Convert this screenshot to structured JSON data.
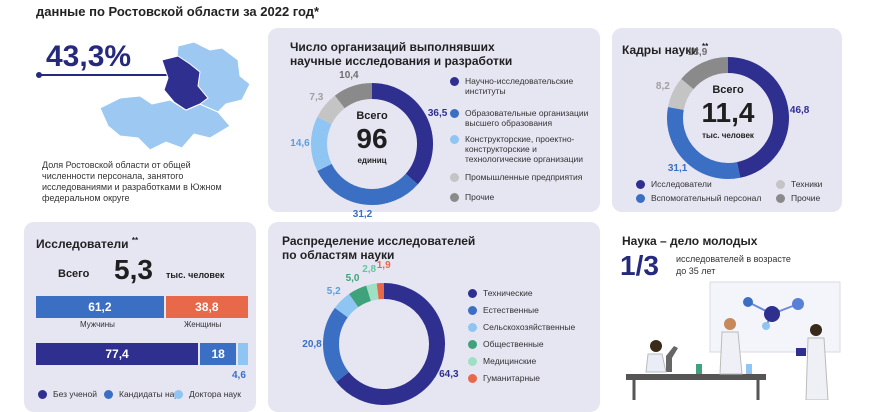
{
  "header": {
    "title": "данные по Ростовской области за 2022 год*"
  },
  "region": {
    "percent": "43,3%",
    "caption": "Доля Ростовской области от общей численности персонала, занятого исследованиями и разработками в Южном федеральном округе"
  },
  "orgs": {
    "title_line1": "Число организаций выполнявших",
    "title_line2": "научные исследования и разработки",
    "center_top": "Всего",
    "center_value": "96",
    "center_unit": "единиц"
  },
  "staff": {
    "title": "Кадры науки",
    "sup": "**",
    "center_top": "Всего",
    "center_value": "11,4",
    "center_unit": "тыс. человек"
  },
  "researchers": {
    "title": "Исследователи",
    "sup": "**",
    "total_label": "Всего",
    "total_value": "5,3",
    "total_unit": "тыс. человек",
    "gender": {
      "male_value": "61,2",
      "female_value": "38,8",
      "male_label": "Мужчины",
      "female_label": "Женщины"
    },
    "degree": {
      "none_value": "77,4",
      "candidates_value": "18",
      "doctors_value": "4,6"
    },
    "legend": [
      "Без ученой",
      "Кандидаты наук",
      "Доктора наук"
    ]
  },
  "fields": {
    "title_line1": "Распределение исследователей",
    "title_line2": "по областям науки"
  },
  "young": {
    "title": "Наука – дело молодых",
    "fraction": "1/3",
    "text_line1": "исследователей в возрасте",
    "text_line2": "до 35 лет"
  },
  "colors": {
    "navy": "#2e2f8f",
    "blue": "#3a6fc4",
    "lightblue": "#8ec5f2",
    "grey": "#c4c4c4",
    "darkgrey": "#8a8a8a",
    "green": "#3ea37a",
    "mint": "#9fe0c4",
    "orange": "#e8684a",
    "map_dark": "#2e2f8f",
    "map_light": "#9cc8f2"
  },
  "chart_data": [
    {
      "type": "pie",
      "name": "orgs",
      "categories": [
        "Научно-исследовательские институты",
        "Образовательные организации высшего образования",
        "Конструкторские, проектно-конструкторские и технологические организации",
        "Промышленные предприятия",
        "Прочие"
      ],
      "values": [
        36.5,
        31.2,
        14.6,
        7.3,
        10.4
      ],
      "labels": [
        "36,5",
        "31,2",
        "14,6",
        "7,3",
        "10,4"
      ],
      "colors": [
        "#2e2f8f",
        "#3a6fc4",
        "#8ec5f2",
        "#c4c4c4",
        "#8a8a8a"
      ]
    },
    {
      "type": "pie",
      "name": "staff",
      "categories": [
        "Исследователи",
        "Вспомогательный персонал",
        "Техники",
        "Прочие"
      ],
      "values": [
        46.8,
        31.1,
        8.2,
        13.9
      ],
      "labels": [
        "46,8",
        "31,1",
        "8,2",
        "13,9"
      ],
      "colors": [
        "#2e2f8f",
        "#3a6fc4",
        "#c4c4c4",
        "#8a8a8a"
      ]
    },
    {
      "type": "bar",
      "name": "researchers_gender",
      "categories": [
        "Мужчины",
        "Женщины"
      ],
      "values": [
        61.2,
        38.8
      ],
      "colors": [
        "#3a6fc4",
        "#e8684a"
      ]
    },
    {
      "type": "bar",
      "name": "researchers_degree",
      "categories": [
        "Без ученой",
        "Кандидаты наук",
        "Доктора наук"
      ],
      "values": [
        77.4,
        18,
        4.6
      ],
      "colors": [
        "#2e2f8f",
        "#3a6fc4",
        "#8ec5f2"
      ]
    },
    {
      "type": "pie",
      "name": "fields",
      "categories": [
        "Технические",
        "Естественные",
        "Сельскохозяйственные",
        "Общественные",
        "Медицинские",
        "Гуманитарные"
      ],
      "values": [
        64.3,
        20.8,
        5.2,
        5.0,
        2.8,
        1.9
      ],
      "labels": [
        "64,3",
        "20,8",
        "5,2",
        "5,0",
        "2,8",
        "1,9"
      ],
      "colors": [
        "#2e2f8f",
        "#3a6fc4",
        "#8ec5f2",
        "#3ea37a",
        "#9fe0c4",
        "#e8684a"
      ]
    }
  ]
}
